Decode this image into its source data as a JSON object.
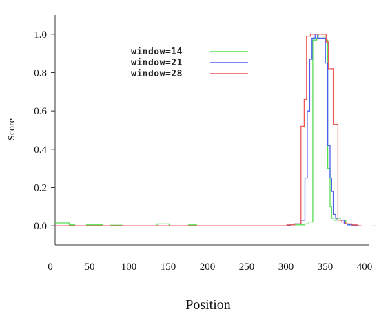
{
  "chart_data": {
    "type": "line",
    "title": "",
    "xlabel": "Position",
    "ylabel": "Score",
    "xlim": [
      0,
      400
    ],
    "ylim": [
      -0.1,
      1.1
    ],
    "xticks": [
      "0",
      "50",
      "100",
      "150",
      "200",
      "250",
      "300",
      "350",
      "400"
    ],
    "yticks": [
      "0.0",
      "0.2",
      "0.4",
      "0.6",
      "0.8",
      "1.0"
    ],
    "xtick_values": [
      0,
      50,
      100,
      150,
      200,
      250,
      300,
      350,
      400
    ],
    "ytick_values": [
      0,
      0.2,
      0.4,
      0.6,
      0.8,
      1.0
    ],
    "grid": false,
    "legend_position": "upper-left",
    "series": [
      {
        "name": "window=14",
        "color": "#55dd55",
        "x": [
          0,
          18,
          18,
          25,
          25,
          40,
          40,
          60,
          60,
          70,
          70,
          85,
          85,
          130,
          130,
          145,
          145,
          170,
          170,
          180,
          180,
          300,
          300,
          318,
          318,
          323,
          323,
          328,
          328,
          333,
          333,
          335,
          335,
          340,
          340,
          345,
          345,
          347,
          347,
          350,
          350,
          352,
          352,
          355,
          355,
          358,
          358,
          363,
          363,
          370,
          370,
          375,
          375,
          380,
          380,
          385
        ],
        "y": [
          0.015,
          0.015,
          0.005,
          0.005,
          0.0,
          0.0,
          0.005,
          0.005,
          0.0,
          0.0,
          0.003,
          0.003,
          0.0,
          0.0,
          0.01,
          0.01,
          0.0,
          0.0,
          0.005,
          0.005,
          0.0,
          0.0,
          0.005,
          0.005,
          0.01,
          0.01,
          0.02,
          0.02,
          0.97,
          0.97,
          0.98,
          0.98,
          1.0,
          1.0,
          0.99,
          0.99,
          0.97,
          0.97,
          0.3,
          0.3,
          0.1,
          0.1,
          0.04,
          0.04,
          0.03,
          0.03,
          0.04,
          0.04,
          0.03,
          0.03,
          0.01,
          0.01,
          0.005,
          0.005,
          0.0,
          0.0
        ]
      },
      {
        "name": "window=21",
        "color": "#4a5ef0",
        "x": [
          0,
          300,
          300,
          305,
          305,
          313,
          313,
          318,
          318,
          321,
          321,
          324,
          324,
          327,
          327,
          331,
          331,
          334,
          334,
          344,
          344,
          347,
          347,
          350,
          350,
          352,
          352,
          354,
          354,
          357,
          357,
          360,
          360,
          368,
          368,
          372,
          372,
          378,
          378,
          385
        ],
        "y": [
          0.0,
          0.0,
          0.005,
          0.005,
          0.01,
          0.01,
          0.03,
          0.03,
          0.25,
          0.25,
          0.6,
          0.6,
          0.87,
          0.87,
          0.98,
          0.98,
          1.0,
          1.0,
          0.98,
          0.98,
          0.85,
          0.85,
          0.42,
          0.42,
          0.25,
          0.25,
          0.18,
          0.18,
          0.06,
          0.06,
          0.04,
          0.04,
          0.03,
          0.03,
          0.01,
          0.01,
          0.005,
          0.005,
          0.0,
          0.0
        ]
      },
      {
        "name": "window=28",
        "color": "#ee5555",
        "x": [
          0,
          295,
          295,
          305,
          305,
          313,
          313,
          317,
          317,
          320,
          320,
          325,
          325,
          345,
          345,
          348,
          348,
          354,
          354,
          360,
          360,
          365,
          365,
          370,
          370,
          378,
          378,
          385,
          385,
          390
        ],
        "y": [
          0.0,
          0.0,
          0.005,
          0.005,
          0.01,
          0.01,
          0.52,
          0.52,
          0.66,
          0.66,
          0.99,
          0.99,
          1.0,
          1.0,
          0.96,
          0.96,
          0.82,
          0.82,
          0.53,
          0.53,
          0.03,
          0.03,
          0.02,
          0.02,
          0.01,
          0.01,
          0.005,
          0.005,
          0.0,
          0.0
        ]
      }
    ],
    "annotations": [
      {
        "text": "-",
        "x": 400,
        "y": 0.0
      }
    ]
  }
}
